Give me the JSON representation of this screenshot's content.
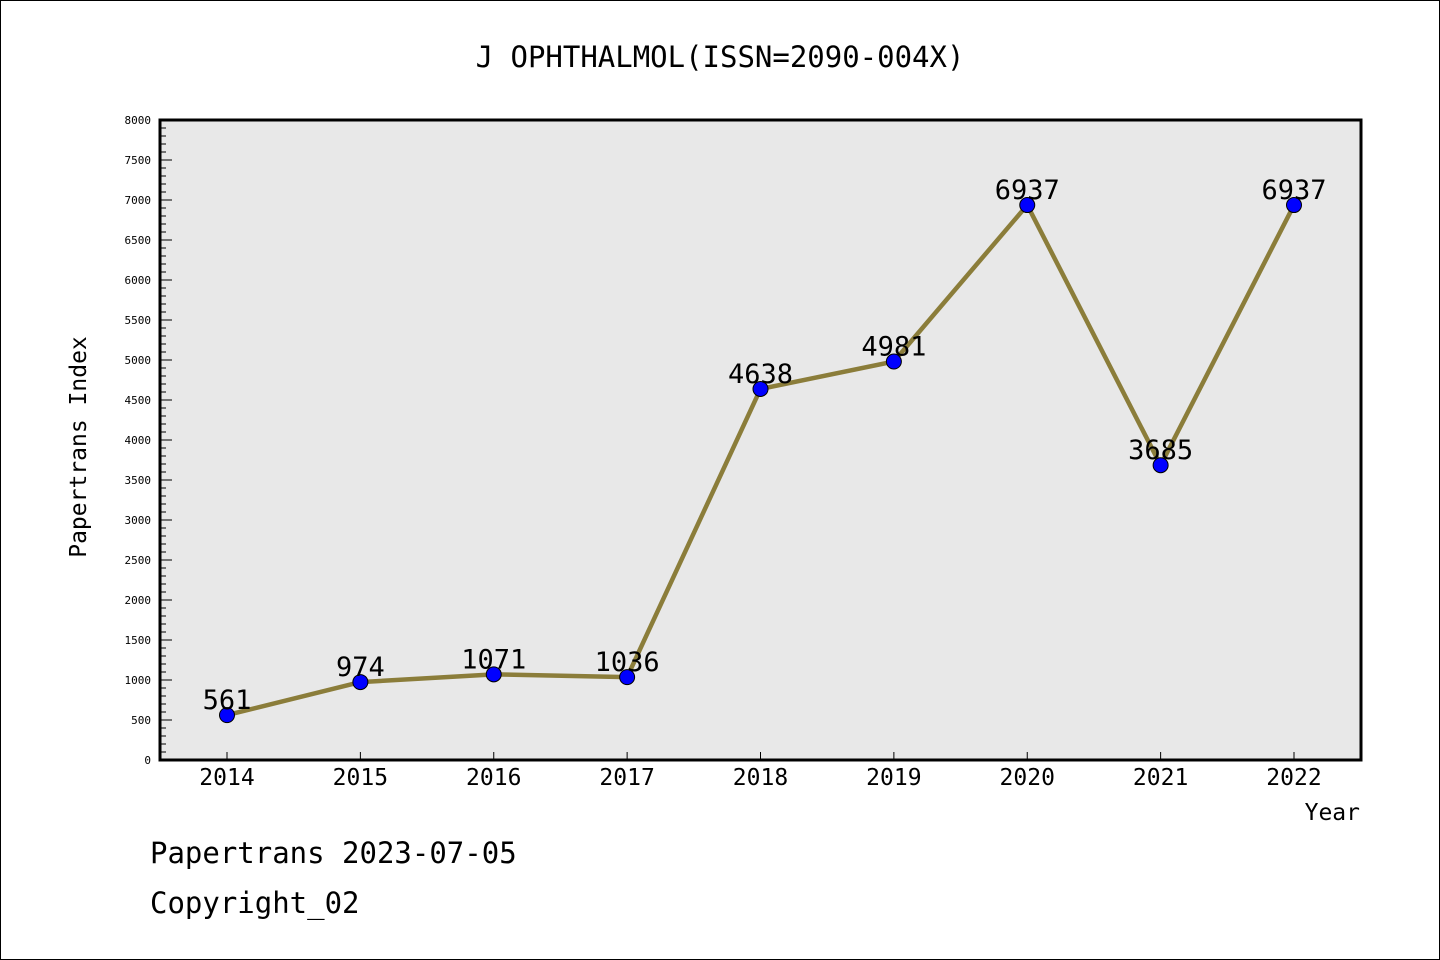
{
  "chart_data": {
    "type": "line",
    "title": "J OPHTHALMOL(ISSN=2090-004X)",
    "xlabel": "Year",
    "ylabel": "Papertrans Index",
    "categories": [
      "2014",
      "2015",
      "2016",
      "2017",
      "2018",
      "2019",
      "2020",
      "2021",
      "2022"
    ],
    "series": [
      {
        "values": [
          561,
          974,
          1071,
          1036,
          4638,
          4981,
          6937,
          3685,
          6937
        ]
      }
    ],
    "data_labels": [
      "561",
      "974",
      "1071",
      "1036",
      "4638",
      "4981",
      "6937",
      "3685",
      "6937"
    ],
    "ylim": [
      0,
      8000
    ],
    "yticks": [
      0,
      500,
      1000,
      1500,
      2000,
      2500,
      3000,
      3500,
      4000,
      4500,
      5000,
      5500,
      6000,
      6500,
      7000,
      7500,
      8000
    ],
    "ytick_labels": [
      "0",
      "500",
      "1000",
      "1500",
      "2000",
      "2500",
      "3000",
      "3500",
      "4000",
      "4500",
      "5000",
      "5500",
      "6000",
      "6500",
      "7000",
      "7500",
      "8000"
    ],
    "grid": false,
    "colors": {
      "line": "#8b7d3a",
      "marker": "#0000ff",
      "plot_bg": "#e8e8e8"
    }
  },
  "footer": {
    "line1": "Papertrans 2023-07-05",
    "line2": "Copyright_02"
  }
}
